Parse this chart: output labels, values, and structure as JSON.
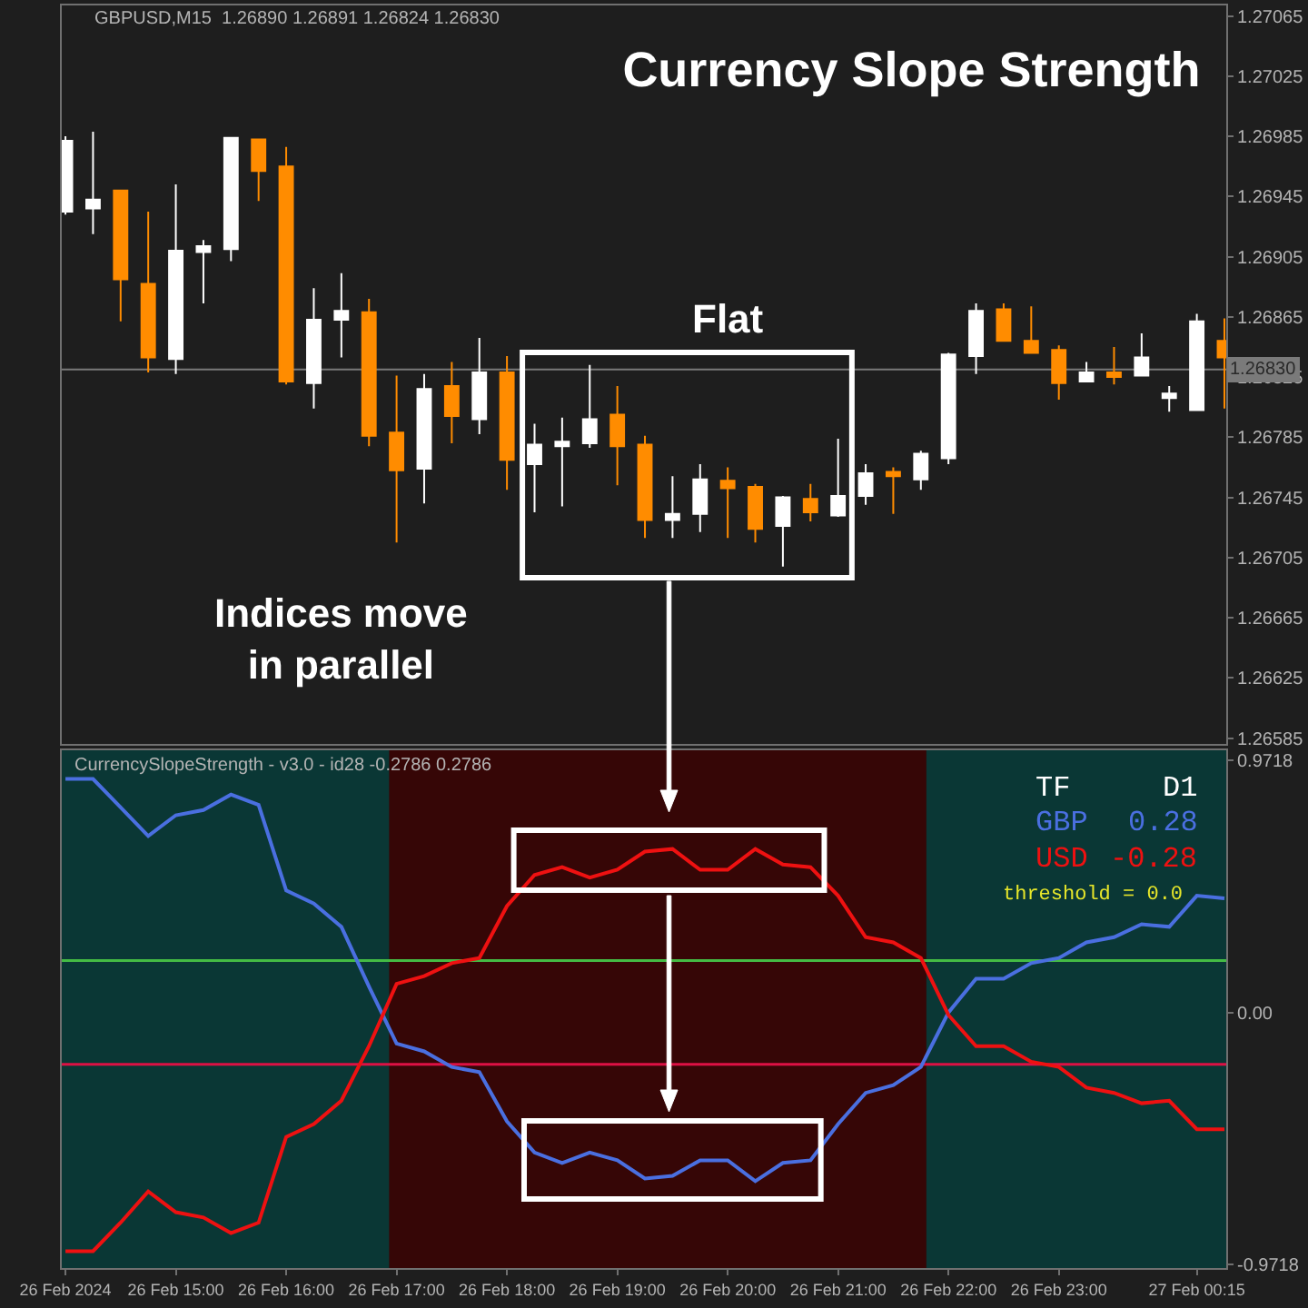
{
  "chart_data": [
    {
      "type": "candlestick",
      "title": "Currency Slope Strength",
      "annotations": [
        "GBPUSD,M15  1.26890 1.26891 1.26824 1.26830",
        "Flat",
        "Indices move\nin parallel"
      ],
      "x": [
        "2024-02-26T14:00",
        "2024-02-26T14:15",
        "2024-02-26T14:30",
        "2024-02-26T14:45",
        "2024-02-26T15:00",
        "2024-02-26T15:15",
        "2024-02-26T15:30",
        "2024-02-26T15:45",
        "2024-02-26T16:00",
        "2024-02-26T16:15",
        "2024-02-26T16:30",
        "2024-02-26T16:45",
        "2024-02-26T17:00",
        "2024-02-26T17:15",
        "2024-02-26T17:30",
        "2024-02-26T17:45",
        "2024-02-26T18:00",
        "2024-02-26T18:15",
        "2024-02-26T18:30",
        "2024-02-26T18:45",
        "2024-02-26T19:00",
        "2024-02-26T19:15",
        "2024-02-26T19:30",
        "2024-02-26T19:45",
        "2024-02-26T20:00",
        "2024-02-26T20:15",
        "2024-02-26T20:30",
        "2024-02-26T20:45",
        "2024-02-26T21:00",
        "2024-02-26T21:15",
        "2024-02-26T21:30",
        "2024-02-26T21:45",
        "2024-02-26T22:00",
        "2024-02-26T22:15",
        "2024-02-26T22:30",
        "2024-02-26T22:45",
        "2024-02-26T23:00",
        "2024-02-26T23:15",
        "2024-02-26T23:30",
        "2024-02-26T23:45",
        "2024-02-27T00:00",
        "2024-02-27T00:15",
        "2024-02-27T00:30"
      ],
      "ohlc": [
        [
          1.26935,
          1.26985,
          1.26933,
          1.26982
        ],
        [
          1.26937,
          1.26988,
          1.2692,
          1.26943
        ],
        [
          1.26949,
          1.26949,
          1.26862,
          1.2689
        ],
        [
          1.26887,
          1.26935,
          1.26828,
          1.26838
        ],
        [
          1.26837,
          1.26953,
          1.26827,
          1.26909
        ],
        [
          1.26908,
          1.26916,
          1.26874,
          1.26912
        ],
        [
          1.2691,
          1.26984,
          1.26902,
          1.26984
        ],
        [
          1.26983,
          1.26983,
          1.26942,
          1.26962
        ],
        [
          1.26965,
          1.26978,
          1.2682,
          1.26822
        ],
        [
          1.26821,
          1.26884,
          1.26804,
          1.26863
        ],
        [
          1.26863,
          1.26894,
          1.26838,
          1.26869
        ],
        [
          1.26868,
          1.26877,
          1.26779,
          1.26786
        ],
        [
          1.26788,
          1.26826,
          1.26715,
          1.26763
        ],
        [
          1.26764,
          1.26827,
          1.26741,
          1.26817
        ],
        [
          1.26819,
          1.26835,
          1.26781,
          1.26799
        ],
        [
          1.26797,
          1.26851,
          1.26787,
          1.26828
        ],
        [
          1.26828,
          1.26839,
          1.2675,
          1.2677
        ],
        [
          1.26767,
          1.26794,
          1.26735,
          1.2678
        ],
        [
          1.26779,
          1.26798,
          1.26739,
          1.26782
        ],
        [
          1.26781,
          1.26833,
          1.26778,
          1.26797
        ],
        [
          1.268,
          1.26819,
          1.26753,
          1.26779
        ],
        [
          1.2678,
          1.26786,
          1.26718,
          1.2673
        ],
        [
          1.2673,
          1.26759,
          1.26718,
          1.26734
        ],
        [
          1.26734,
          1.26767,
          1.26722,
          1.26757
        ],
        [
          1.26756,
          1.26765,
          1.26718,
          1.26751
        ],
        [
          1.26752,
          1.26754,
          1.26715,
          1.26724
        ],
        [
          1.26726,
          1.26746,
          1.26699,
          1.26745
        ],
        [
          1.26744,
          1.26754,
          1.26729,
          1.26735
        ],
        [
          1.26733,
          1.26784,
          1.26732,
          1.26746
        ],
        [
          1.26746,
          1.26767,
          1.2674,
          1.26761
        ],
        [
          1.26762,
          1.26765,
          1.26734,
          1.26759
        ],
        [
          1.26757,
          1.26776,
          1.2675,
          1.26774
        ],
        [
          1.26771,
          1.26841,
          1.26767,
          1.2684
        ],
        [
          1.26839,
          1.26874,
          1.26827,
          1.26869
        ],
        [
          1.2687,
          1.26874,
          1.26849,
          1.26849
        ],
        [
          1.26849,
          1.26872,
          1.26841,
          1.26841
        ],
        [
          1.26843,
          1.26846,
          1.2681,
          1.26821
        ],
        [
          1.26822,
          1.26835,
          1.26822,
          1.26828
        ],
        [
          1.26828,
          1.26845,
          1.2682,
          1.26825
        ],
        [
          1.26826,
          1.26854,
          1.26826,
          1.26838
        ],
        [
          1.26811,
          1.26819,
          1.26802,
          1.26814
        ],
        [
          1.26803,
          1.26867,
          1.26803,
          1.26862
        ],
        [
          1.26849,
          1.26864,
          1.26804,
          1.26838
        ]
      ],
      "colors": [
        "#ffffff",
        "#ffffff",
        "#ff8c00",
        "#ff8c00",
        "#ffffff",
        "#ffffff",
        "#ffffff",
        "#ff8c00",
        "#ff8c00",
        "#ffffff",
        "#ffffff",
        "#ff8c00",
        "#ff8c00",
        "#ffffff",
        "#ff8c00",
        "#ffffff",
        "#ff8c00",
        "#ffffff",
        "#ffffff",
        "#ffffff",
        "#ff8c00",
        "#ff8c00",
        "#ffffff",
        "#ffffff",
        "#ff8c00",
        "#ff8c00",
        "#ffffff",
        "#ff8c00",
        "#ffffff",
        "#ffffff",
        "#ff8c00",
        "#ffffff",
        "#ffffff",
        "#ffffff",
        "#ff8c00",
        "#ff8c00",
        "#ff8c00",
        "#ffffff",
        "#ff8c00",
        "#ffffff",
        "#ffffff",
        "#ffffff",
        "#ff8c00"
      ],
      "xlim": [
        "2024-02-26T13:58",
        "2024-02-27T00:31"
      ],
      "ylim": [
        1.26581,
        1.27072
      ],
      "yticks": [
        1.27065,
        1.27025,
        1.26985,
        1.26945,
        1.26905,
        1.26865,
        1.26825,
        1.26785,
        1.26745,
        1.26705,
        1.26665,
        1.26625,
        1.26585
      ],
      "ref_lines": [
        {
          "axis": "y",
          "value": 1.2683,
          "label": "1.26830",
          "color": "#7a7a7a"
        }
      ],
      "tick_labels": "y"
    },
    {
      "type": "line",
      "annotations": [
        "CurrencySlopeStrength - v3.0 - id28 -0.2786 0.2786",
        "TF",
        "D1",
        "GBP",
        "0.28",
        "USD",
        "-0.28",
        "threshold = 0.0"
      ],
      "x": [
        "2024-02-26T14:00",
        "2024-02-26T14:15",
        "2024-02-26T14:30",
        "2024-02-26T14:45",
        "2024-02-26T15:00",
        "2024-02-26T15:15",
        "2024-02-26T15:30",
        "2024-02-26T15:45",
        "2024-02-26T16:00",
        "2024-02-26T16:15",
        "2024-02-26T16:30",
        "2024-02-26T16:45",
        "2024-02-26T17:00",
        "2024-02-26T17:15",
        "2024-02-26T17:30",
        "2024-02-26T17:45",
        "2024-02-26T18:00",
        "2024-02-26T18:15",
        "2024-02-26T18:30",
        "2024-02-26T18:45",
        "2024-02-26T19:00",
        "2024-02-26T19:15",
        "2024-02-26T19:30",
        "2024-02-26T19:45",
        "2024-02-26T20:00",
        "2024-02-26T20:15",
        "2024-02-26T20:30",
        "2024-02-26T20:45",
        "2024-02-26T21:00",
        "2024-02-26T21:15",
        "2024-02-26T21:30",
        "2024-02-26T21:45",
        "2024-02-26T22:00",
        "2024-02-26T22:15",
        "2024-02-26T22:30",
        "2024-02-26T22:45",
        "2024-02-26T23:00",
        "2024-02-26T23:15",
        "2024-02-26T23:30",
        "2024-02-26T23:45",
        "2024-02-27T00:00",
        "2024-02-27T00:15",
        "2024-02-27T00:30"
      ],
      "series": [
        {
          "color": "#4a6fe0",
          "values": [
            0.9,
            0.9,
            0.79,
            0.68,
            0.76,
            0.78,
            0.84,
            0.8,
            0.47,
            0.42,
            0.33,
            0.1,
            -0.12,
            -0.15,
            -0.21,
            -0.23,
            -0.42,
            -0.54,
            -0.58,
            -0.54,
            -0.57,
            -0.64,
            -0.63,
            -0.57,
            -0.57,
            -0.65,
            -0.58,
            -0.57,
            -0.43,
            -0.31,
            -0.28,
            -0.21,
            0.0,
            0.13,
            0.13,
            0.19,
            0.21,
            0.27,
            0.29,
            0.34,
            0.33,
            0.45,
            0.44
          ]
        },
        {
          "color": "#ee1111",
          "values": [
            -0.92,
            -0.92,
            -0.81,
            -0.69,
            -0.77,
            -0.79,
            -0.85,
            -0.81,
            -0.48,
            -0.43,
            -0.34,
            -0.13,
            0.11,
            0.14,
            0.19,
            0.21,
            0.41,
            0.53,
            0.56,
            0.52,
            0.55,
            0.62,
            0.63,
            0.55,
            0.55,
            0.63,
            0.57,
            0.56,
            0.45,
            0.29,
            0.27,
            0.21,
            -0.01,
            -0.13,
            -0.13,
            -0.19,
            -0.21,
            -0.29,
            -0.31,
            -0.35,
            -0.34,
            -0.45,
            -0.45
          ]
        }
      ],
      "xlim": [
        "2024-02-26T13:58",
        "2024-02-27T00:31"
      ],
      "xticks": [
        {
          "value": "2024-02-26T14:00",
          "label": "26 Feb 2024"
        },
        {
          "value": "2024-02-26T15:00",
          "label": "26 Feb 15:00"
        },
        {
          "value": "2024-02-26T16:00",
          "label": "26 Feb 16:00"
        },
        {
          "value": "2024-02-26T17:00",
          "label": "26 Feb 17:00"
        },
        {
          "value": "2024-02-26T18:00",
          "label": "26 Feb 18:00"
        },
        {
          "value": "2024-02-26T19:00",
          "label": "26 Feb 19:00"
        },
        {
          "value": "2024-02-26T20:00",
          "label": "26 Feb 20:00"
        },
        {
          "value": "2024-02-26T21:00",
          "label": "26 Feb 21:00"
        },
        {
          "value": "2024-02-26T22:00",
          "label": "26 Feb 22:00"
        },
        {
          "value": "2024-02-26T23:00",
          "label": "26 Feb 23:00"
        },
        {
          "value": "2024-02-27T00:15",
          "label": "27 Feb 00:15"
        }
      ],
      "ylim": [
        -0.985,
        1.01
      ],
      "yticks": [
        0.9718,
        {
          "value": 0,
          "label": "0.00"
        },
        -0.9718
      ],
      "ref_lines": [
        {
          "axis": "y",
          "value": 0.2,
          "color": "#44bb44"
        },
        {
          "axis": "y",
          "value": -0.2,
          "color": "#dd1144"
        }
      ],
      "bands": [
        {
          "axis": "x",
          "from": "2024-02-26T13:58",
          "to": "2024-02-26T16:56",
          "color": "#0a3735"
        },
        {
          "axis": "x",
          "from": "2024-02-26T16:56",
          "to": "2024-02-26T21:48",
          "color": "#360606"
        },
        {
          "axis": "x",
          "from": "2024-02-26T21:48",
          "to": "2024-02-27T00:31",
          "color": "#0a3735"
        }
      ]
    }
  ]
}
